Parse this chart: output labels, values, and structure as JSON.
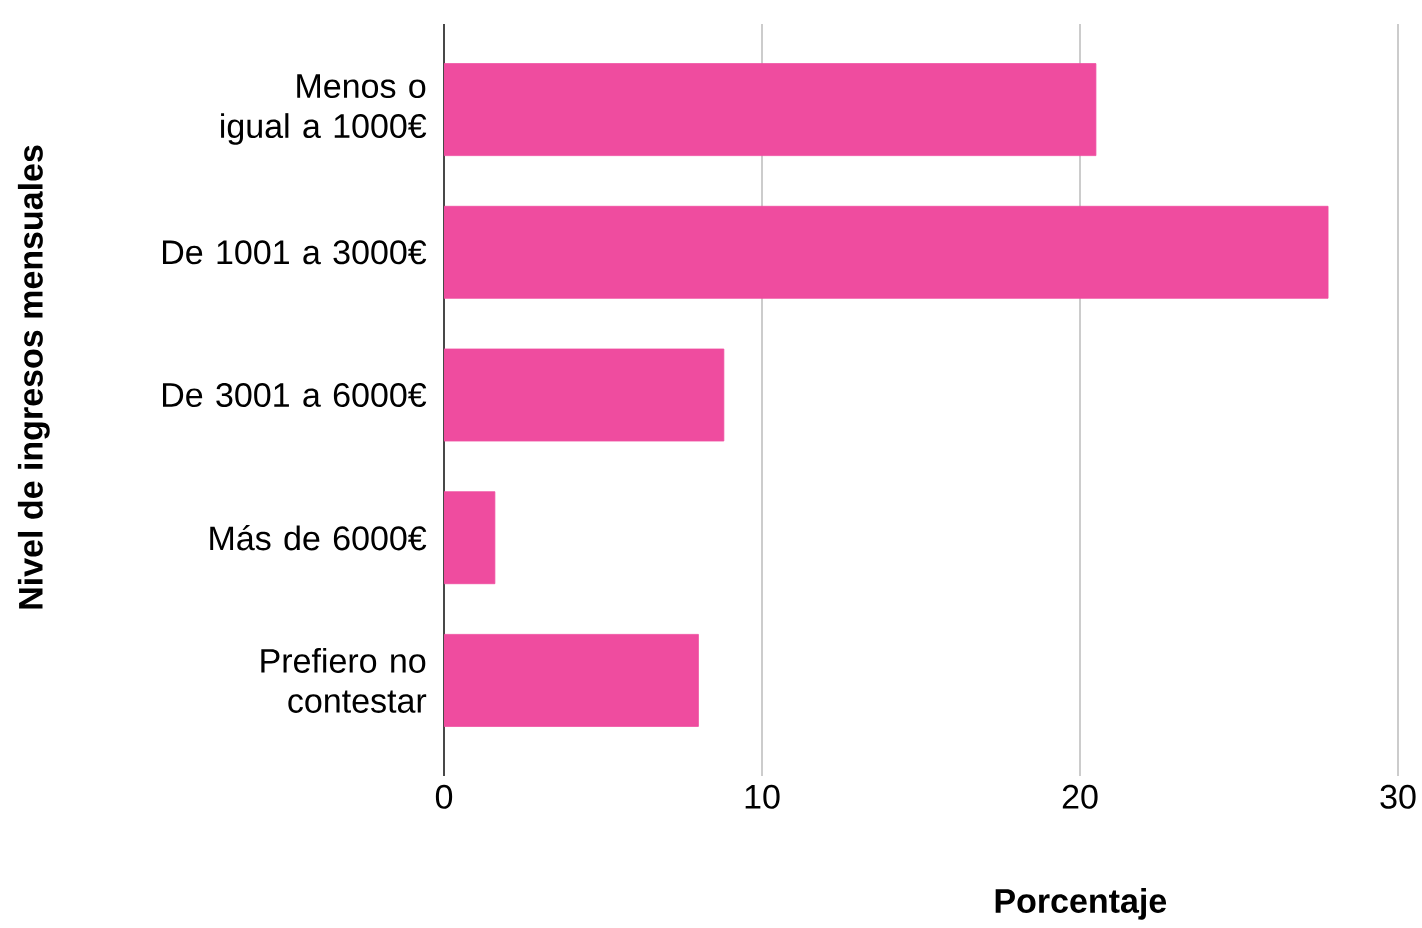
{
  "chart_data": {
    "type": "bar",
    "orientation": "horizontal",
    "xlabel": "Porcentaje",
    "ylabel": "Nivel de ingresos mensuales",
    "categories": [
      "Menos o igual a 1000€",
      "De 1001 a 3000€",
      "De 3001 a 6000€",
      "Más de 6000€",
      "Prefiero no contestar"
    ],
    "values": [
      20.5,
      27.8,
      8.8,
      1.6,
      8.0
    ],
    "color": "#ef4c9f",
    "xlim": [
      0,
      30
    ],
    "xticks": [
      0,
      10,
      20,
      30
    ],
    "grid": "x"
  }
}
